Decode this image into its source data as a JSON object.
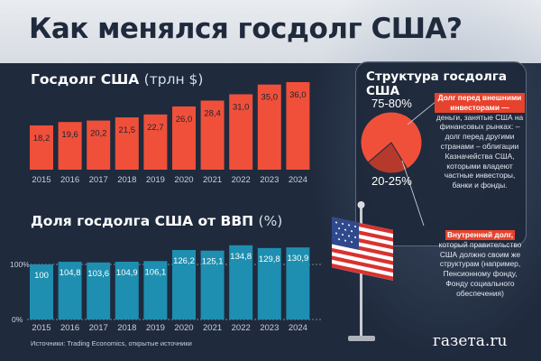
{
  "title": "Как менялся госдолг США?",
  "debt_section": {
    "title": "Госдолг США",
    "unit": "(трлн $)"
  },
  "gdp_section": {
    "title": "Доля госдолга США от ВВП",
    "unit": "(%)"
  },
  "structure": {
    "title": "Структура госдолга США",
    "external_pct": "75-80%",
    "internal_pct": "20-25%",
    "external_head": "Долг перед внешними инвесторами —",
    "external_text": "деньги, занятые США на финансовых рынках: – долг перед другими странами – облигации Казначейства США, которыми владеют частные инвесторы, банки и фонды.",
    "internal_head": "Внутренний долг,",
    "internal_text": "который правительство США должно своим же структурам (например, Пенсионному фонду, Фонду социального обеспечения)"
  },
  "source": "Источники: Trading Economics, открытые источники",
  "brand": "газета.ru",
  "colors": {
    "debt_bar": "#f0503a",
    "gdp_bar": "#1e8fb0",
    "accent": "#e7422d",
    "background": "#1f2a3d"
  },
  "chart_data": [
    {
      "type": "bar",
      "title": "Госдолг США",
      "ylabel": "(трлн $)",
      "categories": [
        "2015",
        "2016",
        "2017",
        "2018",
        "2019",
        "2020",
        "2021",
        "2022",
        "2023",
        "2024"
      ],
      "values": [
        18.2,
        19.6,
        20.2,
        21.5,
        22.7,
        26.0,
        28.4,
        31.0,
        35.0,
        36.0
      ],
      "value_labels": [
        "18,2",
        "19,6",
        "20,2",
        "21,5",
        "22,7",
        "26,0",
        "28,4",
        "31,0",
        "35,0",
        "36,0"
      ],
      "ylim": [
        0,
        36
      ]
    },
    {
      "type": "bar",
      "title": "Доля госдолга США от ВВП",
      "ylabel": "(%)",
      "categories": [
        "2015",
        "2016",
        "2017",
        "2018",
        "2019",
        "2020",
        "2021",
        "2022",
        "2023",
        "2024"
      ],
      "values": [
        100,
        104.8,
        103.6,
        104.9,
        106.1,
        126.2,
        125.1,
        134.8,
        129.8,
        130.9
      ],
      "value_labels": [
        "100",
        "104,8",
        "103,6",
        "104,9",
        "106,1",
        "126,2",
        "125,1",
        "134,8",
        "129,8",
        "130,9"
      ],
      "yticks": [
        "100%",
        "0%"
      ],
      "ylim": [
        0,
        135
      ]
    },
    {
      "type": "pie",
      "title": "Структура госдолга США",
      "labels": [
        "Долг перед внешними инвесторами",
        "Внутренний долг"
      ],
      "values": [
        77.5,
        22.5
      ],
      "value_labels": [
        "75-80%",
        "20-25%"
      ]
    }
  ]
}
